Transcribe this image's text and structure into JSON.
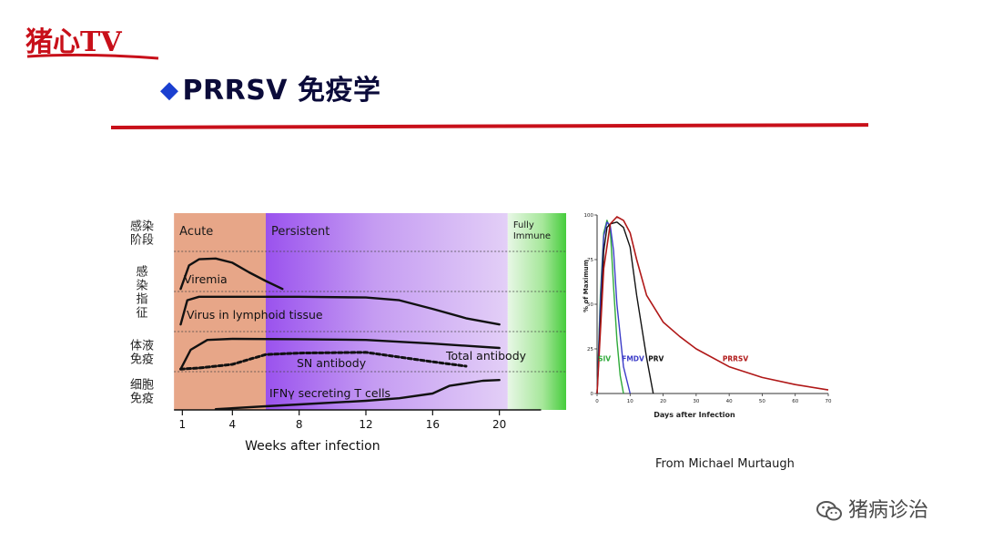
{
  "brand": {
    "logo_text": "猪心TV",
    "logo_color": "#c8101a"
  },
  "slide": {
    "title": "PRRSV 免疫学",
    "bullet_color": "#1a3fd0",
    "rule_color": "#c8101a"
  },
  "credit": "From Michael Murtaugh",
  "watermark": {
    "icon": "wechat-icon",
    "text": "猪病诊治"
  },
  "chart_data": [
    {
      "type": "line",
      "xlabel": "Weeks after infection",
      "ylabel": "",
      "xticks": [
        1,
        4,
        8,
        12,
        16,
        20
      ],
      "phases": [
        {
          "label": "Acute",
          "from": 0.5,
          "to": 6,
          "color": "#e7a688"
        },
        {
          "label": "Persistent",
          "from": 6,
          "to": 20.5,
          "color": "#b07ee8"
        },
        {
          "label": "Fully\nImmune",
          "from": 20.5,
          "to": 24,
          "color": "#6fd86a"
        }
      ],
      "row_labels": [
        "感染\n阶段",
        "感\n染\n指\n征",
        "体液\n免疫",
        "细胞\n免疫"
      ],
      "series": [
        {
          "name": "Viremia",
          "x": [
            0.9,
            1.4,
            2,
            3,
            4,
            5,
            6,
            7
          ],
          "y": [
            0.02,
            0.7,
            0.88,
            0.9,
            0.78,
            0.5,
            0.25,
            0.02
          ]
        },
        {
          "name": "Virus in lymphoid tissue",
          "x": [
            0.9,
            1.3,
            2,
            4,
            8,
            12,
            14,
            16,
            18,
            20
          ],
          "y": [
            0.1,
            0.8,
            0.9,
            0.9,
            0.9,
            0.88,
            0.8,
            0.55,
            0.28,
            0.1
          ]
        },
        {
          "name": "Total antibody",
          "x": [
            0.9,
            1.5,
            2.5,
            4,
            8,
            12,
            16,
            20
          ],
          "y": [
            0.02,
            0.55,
            0.82,
            0.85,
            0.84,
            0.82,
            0.72,
            0.6
          ]
        },
        {
          "name": "SN antibody",
          "x": [
            0.9,
            2,
            4,
            6,
            8,
            12,
            14,
            16,
            18
          ],
          "y": [
            0.02,
            0.05,
            0.15,
            0.42,
            0.46,
            0.48,
            0.35,
            0.22,
            0.1
          ]
        },
        {
          "name": "IFNγ secreting T cells",
          "x": [
            3,
            6,
            8,
            12,
            14,
            16,
            17,
            19,
            20
          ],
          "y": [
            0.02,
            0.1,
            0.15,
            0.25,
            0.32,
            0.45,
            0.66,
            0.8,
            0.82
          ]
        }
      ]
    },
    {
      "type": "line",
      "xlabel": "Days after Infection",
      "ylabel": "% of Maximum",
      "xlim": [
        0,
        70
      ],
      "ylim": [
        0,
        100
      ],
      "xticks": [
        0,
        10,
        20,
        30,
        40,
        50,
        60,
        70
      ],
      "yticks": [
        0,
        25,
        50,
        75,
        100
      ],
      "series": [
        {
          "name": "SIV",
          "color": "#2faa3a",
          "x": [
            0,
            1,
            2,
            3,
            4,
            5,
            6,
            7,
            8
          ],
          "y": [
            0,
            55,
            90,
            97,
            92,
            60,
            30,
            10,
            0
          ]
        },
        {
          "name": "FMDV",
          "color": "#3c3cc8",
          "x": [
            0,
            1,
            2,
            3,
            4,
            5,
            6,
            8,
            10
          ],
          "y": [
            0,
            50,
            88,
            96,
            94,
            80,
            50,
            15,
            0
          ]
        },
        {
          "name": "PRV",
          "color": "#111111",
          "x": [
            0,
            1,
            2,
            3,
            4,
            6,
            8,
            10,
            12,
            15,
            17
          ],
          "y": [
            0,
            40,
            80,
            93,
            95,
            96,
            93,
            82,
            55,
            20,
            0
          ]
        },
        {
          "name": "PRRSV",
          "color": "#b01818",
          "x": [
            0,
            2,
            4,
            6,
            8,
            10,
            12,
            15,
            20,
            25,
            30,
            40,
            50,
            60,
            70
          ],
          "y": [
            0,
            70,
            95,
            99,
            97,
            90,
            75,
            55,
            40,
            32,
            25,
            15,
            9,
            5,
            2
          ]
        }
      ]
    }
  ]
}
